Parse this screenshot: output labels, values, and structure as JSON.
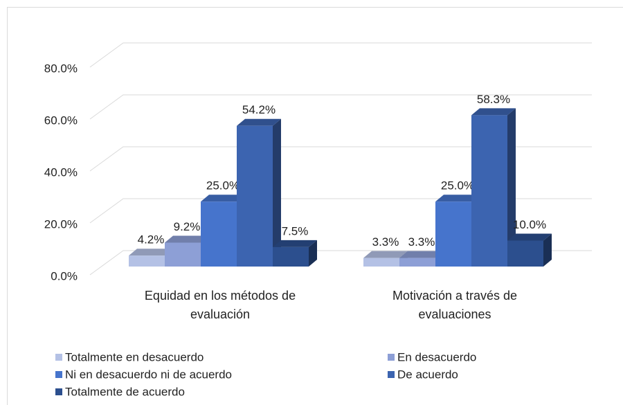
{
  "chart_data": {
    "type": "bar3d",
    "categories": [
      "Equidad en los métodos de evaluación",
      "Motivación a través de evaluaciones"
    ],
    "series": [
      {
        "name": "Totalmente en desacuerdo",
        "color": "#b4c1e5",
        "values": [
          4.2,
          3.3
        ],
        "value_labels": [
          "4.2%",
          "3.3%"
        ]
      },
      {
        "name": "En desacuerdo",
        "color": "#8d9fd6",
        "values": [
          9.2,
          3.3
        ],
        "value_labels": [
          "9.2%",
          "3.3%"
        ]
      },
      {
        "name": "Ni en desacuerdo ni de acuerdo",
        "color": "#4674cc",
        "values": [
          25.0,
          25.0
        ],
        "value_labels": [
          "25.0%",
          "25.0%"
        ]
      },
      {
        "name": "De acuerdo",
        "color": "#3c64b0",
        "values": [
          54.2,
          58.3
        ],
        "value_labels": [
          "54.2%",
          "58.3%"
        ]
      },
      {
        "name": "Totalmente de acuerdo",
        "color": "#2c4f8e",
        "values": [
          7.5,
          10.0
        ],
        "value_labels": [
          "7.5%",
          "10.0%"
        ]
      }
    ],
    "ylim": [
      0,
      80
    ],
    "yticks": [
      {
        "value": 0,
        "label": "0.0%"
      },
      {
        "value": 20,
        "label": "20.0%"
      },
      {
        "value": 40,
        "label": "40.0%"
      },
      {
        "value": 60,
        "label": "60.0%"
      },
      {
        "value": 80,
        "label": "80.0%"
      }
    ],
    "grid": true
  }
}
